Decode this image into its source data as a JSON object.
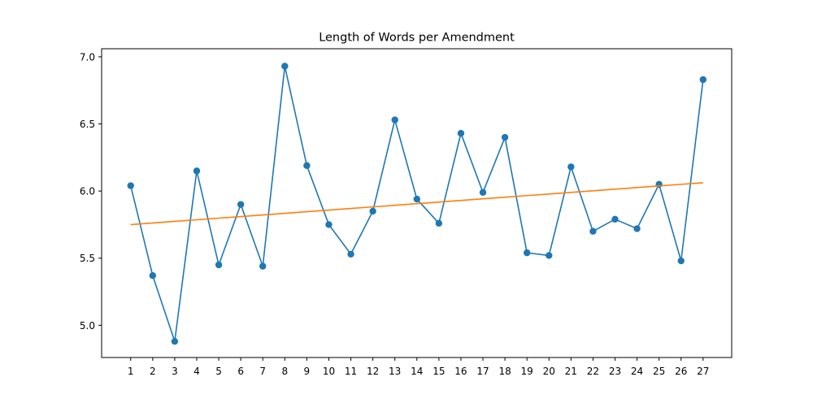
{
  "chart_data": {
    "type": "line",
    "title": "Length of Words per Amendment",
    "xlabel": "",
    "ylabel": "",
    "x": [
      1,
      2,
      3,
      4,
      5,
      6,
      7,
      8,
      9,
      10,
      11,
      12,
      13,
      14,
      15,
      16,
      17,
      18,
      19,
      20,
      21,
      22,
      23,
      24,
      25,
      26,
      27
    ],
    "series": [
      {
        "name": "",
        "color": "#1f77b4",
        "marker": "circle",
        "values": [
          6.04,
          5.37,
          4.88,
          6.15,
          5.45,
          5.9,
          5.44,
          6.93,
          6.19,
          5.75,
          5.53,
          5.85,
          6.53,
          5.94,
          5.76,
          6.43,
          5.99,
          6.4,
          5.54,
          5.52,
          6.18,
          5.7,
          5.79,
          5.72,
          6.05,
          5.48,
          6.83
        ]
      },
      {
        "name": "",
        "color": "#ff7f0e",
        "marker": "none",
        "values": [
          5.75,
          5.762,
          5.774,
          5.786,
          5.798,
          5.81,
          5.822,
          5.834,
          5.846,
          5.858,
          5.87,
          5.882,
          5.894,
          5.906,
          5.918,
          5.93,
          5.942,
          5.954,
          5.966,
          5.978,
          5.99,
          6.002,
          6.014,
          6.026,
          6.038,
          6.05,
          6.062
        ]
      }
    ],
    "xlim": [
      -0.32,
      28.3
    ],
    "ylim": [
      4.76,
      7.06
    ],
    "xticks": [
      "1",
      "2",
      "3",
      "4",
      "5",
      "6",
      "7",
      "8",
      "9",
      "10",
      "11",
      "12",
      "13",
      "14",
      "15",
      "16",
      "17",
      "18",
      "19",
      "20",
      "21",
      "22",
      "23",
      "24",
      "25",
      "26",
      "27"
    ],
    "yticks": [
      "5.0",
      "5.5",
      "6.0",
      "6.5",
      "7.0"
    ],
    "ytick_values": [
      5.0,
      5.5,
      6.0,
      6.5,
      7.0
    ],
    "grid": false,
    "legend": "none"
  }
}
